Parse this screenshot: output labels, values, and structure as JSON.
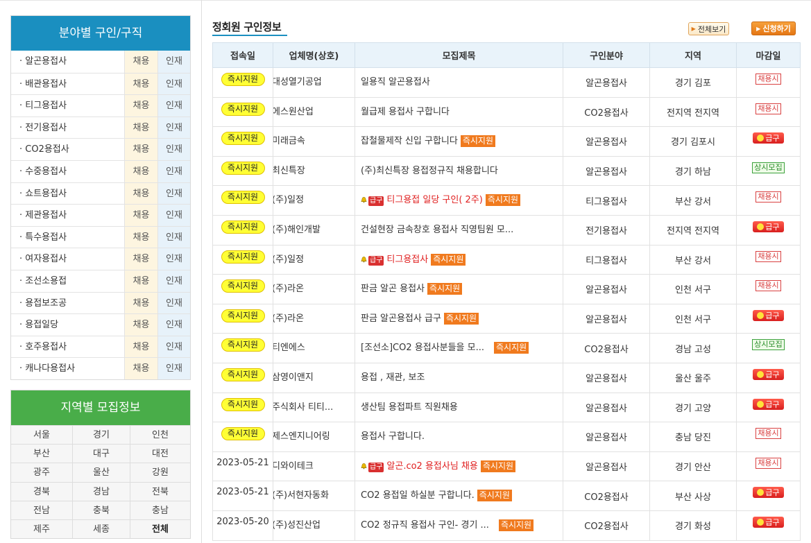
{
  "field_panel": {
    "title": "분야별 구인/구직",
    "hire_label": "채용",
    "talent_label": "인재",
    "items": [
      "· 알곤용접사",
      "· 배관용접사",
      "· 티그용접사",
      "· 전기용접사",
      "· CO2용접사",
      "· 수중용접사",
      "· 쇼트용접사",
      "· 제관용접사",
      "· 특수용접사",
      "· 여자용접사",
      "· 조선소용접",
      "· 용접보조공",
      "· 용접일당",
      "· 호주용접사",
      "· 캐나다용접사"
    ]
  },
  "region_panel": {
    "title": "지역별 모집정보",
    "regions": [
      "서울",
      "경기",
      "인천",
      "부산",
      "대구",
      "대전",
      "광주",
      "울산",
      "강원",
      "경북",
      "경남",
      "전북",
      "전남",
      "충북",
      "충남",
      "제주",
      "세종",
      "전체"
    ]
  },
  "section": {
    "title": "정회원 구인정보",
    "view_all": "전체보기",
    "apply": "신청하기"
  },
  "table": {
    "headers": [
      "접속일",
      "업체명(상호)",
      "모집제목",
      "구인분야",
      "지역",
      "마감일"
    ],
    "instant_label": "즉시지원",
    "urgent_small": "급구",
    "urgent_label": "급구",
    "always_hire_label": "채용시",
    "always_label": "상시모집",
    "rows": [
      {
        "access": "즉시지원",
        "company": "대성열기공업",
        "title": "일용직 알곤용접사",
        "field": "알곤용접사",
        "region": "경기 김포",
        "deadline": "채용시"
      },
      {
        "access": "즉시지원",
        "company": "에스원산업",
        "title": "월급제 용접사 구합니다",
        "field": "CO2용접사",
        "region": "전지역 전지역",
        "deadline": "채용시"
      },
      {
        "access": "즉시지원",
        "company": "미래금속",
        "title": "잡철물제작 신입 구합니다",
        "field": "알곤용접사",
        "region": "경기 김포시",
        "deadline": "급구"
      },
      {
        "access": "즉시지원",
        "company": "최신특장",
        "title": "(주)최신특장 용접정규직 채용합니다",
        "field": "알곤용접사",
        "region": "경기 하남",
        "deadline": "상시모집"
      },
      {
        "access": "즉시지원",
        "company": "(주)일정",
        "title": "티그용접 일당 구인( 2주)",
        "field": "티그용접사",
        "region": "부산 강서",
        "deadline": "채용시"
      },
      {
        "access": "즉시지원",
        "company": "(주)해인개발",
        "title": "건설현장 금속창호 용접사 직영팀원 모...",
        "field": "전기용접사",
        "region": "전지역 전지역",
        "deadline": "급구"
      },
      {
        "access": "즉시지원",
        "company": "(주)일정",
        "title": "티그용접사",
        "field": "티그용접사",
        "region": "부산 강서",
        "deadline": "채용시"
      },
      {
        "access": "즉시지원",
        "company": "(주)라온",
        "title": "판금 알곤 용접사",
        "field": "알곤용접사",
        "region": "인천 서구",
        "deadline": "채용시"
      },
      {
        "access": "즉시지원",
        "company": "(주)라온",
        "title": "판금 알곤용접사 급구",
        "field": "알곤용접사",
        "region": "인천 서구",
        "deadline": "급구"
      },
      {
        "access": "즉시지원",
        "company": "티엔에스",
        "title": "[조선소]CO2 용접사분들을 모...",
        "field": "CO2용접사",
        "region": "경남 고성",
        "deadline": "상시모집"
      },
      {
        "access": "즉시지원",
        "company": "삼영이앤지",
        "title": "용접 , 재관, 보조",
        "field": "알곤용접사",
        "region": "울산 울주",
        "deadline": "급구"
      },
      {
        "access": "즉시지원",
        "company": "주식회사 티티...",
        "title": "생산팀 용접파트 직원채용",
        "field": "알곤용접사",
        "region": "경기 고양",
        "deadline": "급구"
      },
      {
        "access": "즉시지원",
        "company": "제스엔지니어링",
        "title": "용접사 구합니다.",
        "field": "알곤용접사",
        "region": "충남 당진",
        "deadline": "채용시"
      },
      {
        "access": "2023-05-21",
        "company": "디와이테크",
        "title": "알곤.co2 용접사님 채용",
        "field": "알곤용접사",
        "region": "경기 안산",
        "deadline": "채용시"
      },
      {
        "access": "2023-05-21",
        "company": "(주)서현자동화",
        "title": "CO2 용접일 하실분 구합니다.",
        "field": "CO2용접사",
        "region": "부산 사상",
        "deadline": "급구"
      },
      {
        "access": "2023-05-20",
        "company": "(주)성진산업",
        "title": "CO2 정규직 용접사 구인- 경기 ...",
        "field": "CO2용접사",
        "region": "경기 화성",
        "deadline": "급구"
      }
    ]
  }
}
